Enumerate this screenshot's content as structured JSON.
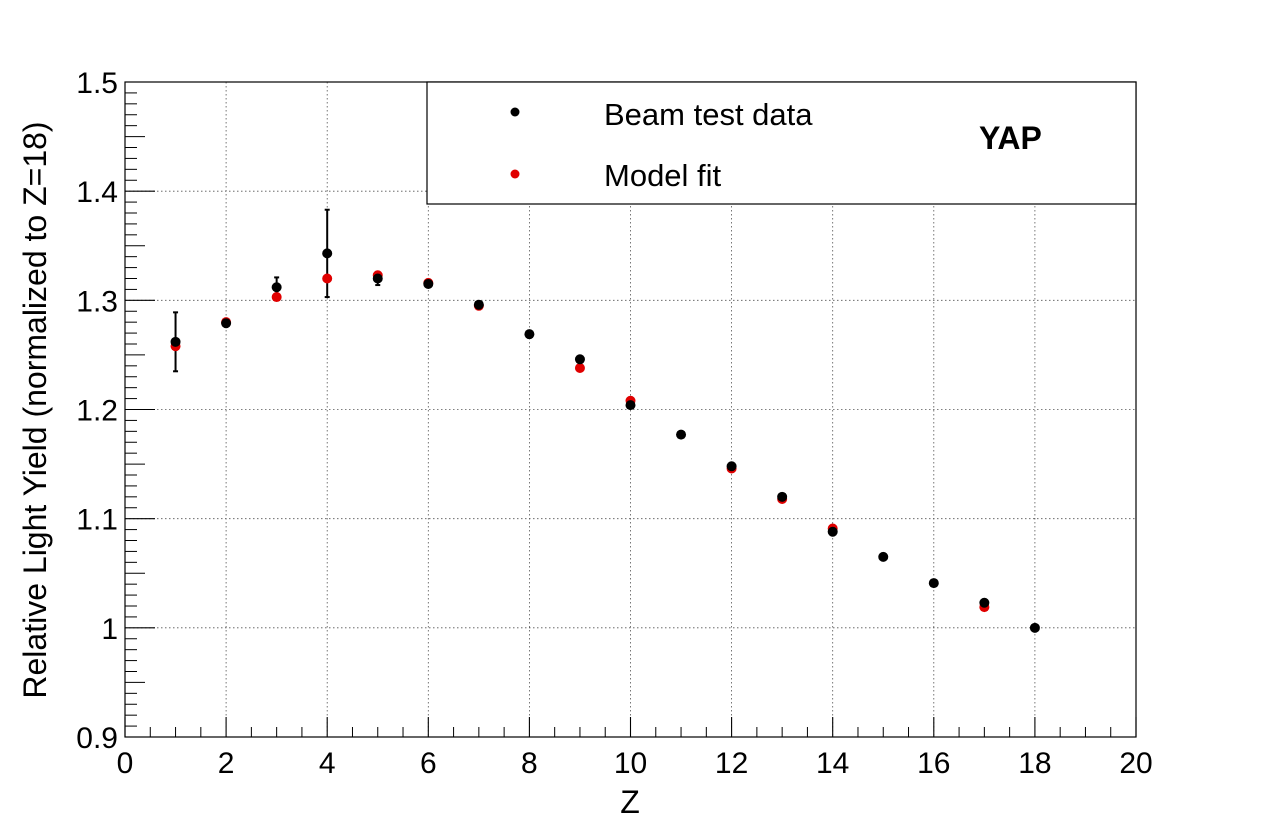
{
  "chart_data": {
    "type": "scatter",
    "xlabel": "Z",
    "ylabel": "Relative Light Yield (normalized to Z=18)",
    "xlim": [
      0,
      20
    ],
    "ylim": [
      0.9,
      1.5
    ],
    "x_ticks": [
      "0",
      "2",
      "4",
      "6",
      "8",
      "10",
      "12",
      "14",
      "16",
      "18",
      "20"
    ],
    "y_ticks": [
      "0.9",
      "1",
      "1.1",
      "1.2",
      "1.3",
      "1.4",
      "1.5"
    ],
    "grid": true,
    "legend_position": "top-right",
    "annotation": "YAP",
    "series": [
      {
        "name": "Beam test data",
        "color": "#000000",
        "points": [
          {
            "x": 1,
            "y": 1.262,
            "err": 0.027
          },
          {
            "x": 2,
            "y": 1.279,
            "err": 0.002
          },
          {
            "x": 3,
            "y": 1.312,
            "err": 0.009
          },
          {
            "x": 4,
            "y": 1.343,
            "err": 0.04
          },
          {
            "x": 5,
            "y": 1.32,
            "err": 0.006
          },
          {
            "x": 6,
            "y": 1.315,
            "err": 0.002
          },
          {
            "x": 7,
            "y": 1.296,
            "err": 0
          },
          {
            "x": 8,
            "y": 1.269,
            "err": 0
          },
          {
            "x": 9,
            "y": 1.246,
            "err": 0
          },
          {
            "x": 10,
            "y": 1.204,
            "err": 0
          },
          {
            "x": 11,
            "y": 1.177,
            "err": 0
          },
          {
            "x": 12,
            "y": 1.148,
            "err": 0
          },
          {
            "x": 13,
            "y": 1.12,
            "err": 0
          },
          {
            "x": 14,
            "y": 1.088,
            "err": 0
          },
          {
            "x": 15,
            "y": 1.065,
            "err": 0
          },
          {
            "x": 16,
            "y": 1.041,
            "err": 0
          },
          {
            "x": 17,
            "y": 1.023,
            "err": 0
          },
          {
            "x": 18,
            "y": 1.0,
            "err": 0
          }
        ]
      },
      {
        "name": "Model fit",
        "color": "#e00000",
        "points": [
          {
            "x": 1,
            "y": 1.258
          },
          {
            "x": 2,
            "y": 1.28
          },
          {
            "x": 3,
            "y": 1.303
          },
          {
            "x": 4,
            "y": 1.32
          },
          {
            "x": 5,
            "y": 1.323
          },
          {
            "x": 6,
            "y": 1.316
          },
          {
            "x": 7,
            "y": 1.295
          },
          {
            "x": 9,
            "y": 1.238
          },
          {
            "x": 10,
            "y": 1.208
          },
          {
            "x": 12,
            "y": 1.146
          },
          {
            "x": 13,
            "y": 1.118
          },
          {
            "x": 14,
            "y": 1.091
          },
          {
            "x": 17,
            "y": 1.019
          }
        ]
      }
    ]
  }
}
